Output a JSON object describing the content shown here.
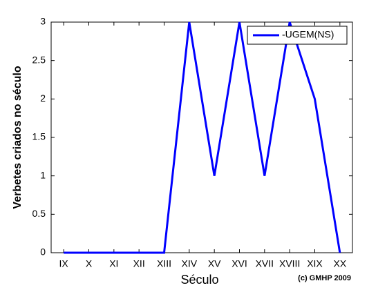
{
  "chart_data": {
    "type": "line",
    "x_label": "Século",
    "y_label": "Verbetes criados no século",
    "annotation": "(c) GMHP 2009",
    "categories": [
      "IX",
      "X",
      "XI",
      "XII",
      "XIII",
      "XIV",
      "XV",
      "XVI",
      "XVII",
      "XVIII",
      "XIX",
      "XX"
    ],
    "series": [
      {
        "name": "-UGEM(NS)",
        "color": "#0000ff",
        "values": [
          0,
          0,
          0,
          0,
          0,
          3,
          1,
          3,
          1,
          3,
          2,
          0
        ]
      }
    ],
    "ylim": [
      0,
      3
    ],
    "yticks": [
      0,
      0.5,
      1,
      1.5,
      2,
      2.5,
      3
    ],
    "legend": "top-right"
  }
}
